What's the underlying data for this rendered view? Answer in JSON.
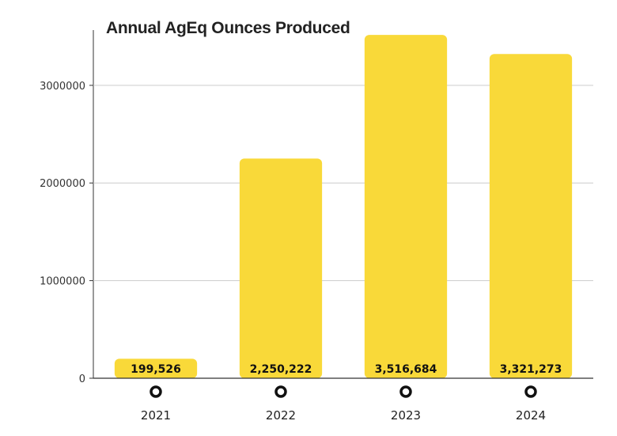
{
  "chart_data": {
    "type": "bar",
    "title": "Annual AgEq Ounces Produced",
    "categories": [
      "2021",
      "2022",
      "2023",
      "2024"
    ],
    "values": [
      199526,
      2250222,
      3516684,
      3321273
    ],
    "data_labels": [
      "199,526",
      "2,250,222",
      "3,516,684",
      "3,321,273"
    ],
    "yticks": [
      0,
      1000000,
      2000000,
      3000000
    ],
    "ytick_labels": [
      "0",
      "1000000",
      "2000000",
      "3000000"
    ],
    "ylim": [
      0,
      3550000
    ],
    "grid": true,
    "xlabel": "",
    "ylabel": "",
    "colors": {
      "bar": "#F9D939",
      "grid": "#cccccc",
      "axis": "#333333",
      "label": "#111111",
      "marker": "#111111"
    }
  }
}
